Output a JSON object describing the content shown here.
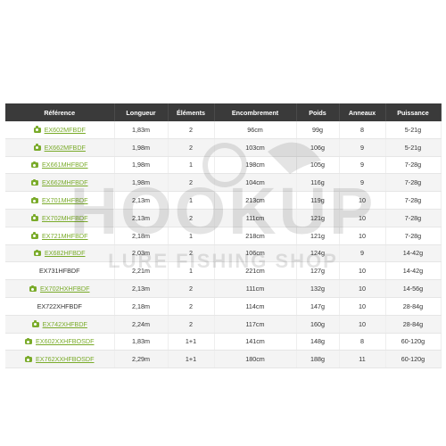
{
  "table": {
    "headers": [
      "Référence",
      "Longueur",
      "Éléments",
      "Encombrement",
      "Poids",
      "Anneaux",
      "Puissance"
    ],
    "rows": [
      {
        "ref": "EX602MFBDF",
        "link": true,
        "longueur": "1,83m",
        "elements": "2",
        "encombrement": "96cm",
        "poids": "99g",
        "anneaux": "8",
        "puissance": "5-21g"
      },
      {
        "ref": "EX662MFBDF",
        "link": true,
        "longueur": "1,98m",
        "elements": "2",
        "encombrement": "103cm",
        "poids": "106g",
        "anneaux": "9",
        "puissance": "5-21g"
      },
      {
        "ref": "EX661MHFBDF",
        "link": true,
        "longueur": "1,98m",
        "elements": "1",
        "encombrement": "198cm",
        "poids": "105g",
        "anneaux": "9",
        "puissance": "7-28g"
      },
      {
        "ref": "EX662MHFBDF",
        "link": true,
        "longueur": "1,98m",
        "elements": "2",
        "encombrement": "104cm",
        "poids": "116g",
        "anneaux": "9",
        "puissance": "7-28g"
      },
      {
        "ref": "EX701MHFBDF",
        "link": true,
        "longueur": "2,13m",
        "elements": "1",
        "encombrement": "213cm",
        "poids": "119g",
        "anneaux": "10",
        "puissance": "7-28g"
      },
      {
        "ref": "EX702MHFBDF",
        "link": true,
        "longueur": "2,13m",
        "elements": "2",
        "encombrement": "111cm",
        "poids": "121g",
        "anneaux": "10",
        "puissance": "7-28g"
      },
      {
        "ref": "EX721MHFBDF",
        "link": true,
        "longueur": "2,18m",
        "elements": "1",
        "encombrement": "218cm",
        "poids": "121g",
        "anneaux": "10",
        "puissance": "7-28g"
      },
      {
        "ref": "EX682HFBDF",
        "link": true,
        "longueur": "2,03m",
        "elements": "2",
        "encombrement": "106cm",
        "poids": "124g",
        "anneaux": "9",
        "puissance": "14-42g"
      },
      {
        "ref": "EX731HFBDF",
        "link": false,
        "longueur": "2,21m",
        "elements": "1",
        "encombrement": "221cm",
        "poids": "127g",
        "anneaux": "10",
        "puissance": "14-42g"
      },
      {
        "ref": "EX702HXHFBDF",
        "link": true,
        "longueur": "2,13m",
        "elements": "2",
        "encombrement": "111cm",
        "poids": "132g",
        "anneaux": "10",
        "puissance": "14-56g"
      },
      {
        "ref": "EX722XHFBDF",
        "link": false,
        "longueur": "2,18m",
        "elements": "2",
        "encombrement": "114cm",
        "poids": "147g",
        "anneaux": "10",
        "puissance": "28-84g"
      },
      {
        "ref": "EX742XHFBDF",
        "link": true,
        "longueur": "2,24m",
        "elements": "2",
        "encombrement": "117cm",
        "poids": "160g",
        "anneaux": "10",
        "puissance": "28-84g"
      },
      {
        "ref": "EX602XXHFBOSDF",
        "link": true,
        "longueur": "1,83m",
        "elements": "1+1",
        "encombrement": "141cm",
        "poids": "148g",
        "anneaux": "8",
        "puissance": "60-120g"
      },
      {
        "ref": "EX762XXHFBOSDF",
        "link": true,
        "longueur": "2,29m",
        "elements": "1+1",
        "encombrement": "180cm",
        "poids": "188g",
        "anneaux": "11",
        "puissance": "60-120g"
      }
    ]
  },
  "watermark": {
    "brand": "HOOKUP",
    "tagline": "LURE FISHING SHOP"
  },
  "colors": {
    "header_bg": "#3a3a3a",
    "link": "#7aab2a",
    "row_alt": "#f4f4f4"
  },
  "icons": {
    "ref_icon": "camera-icon"
  }
}
